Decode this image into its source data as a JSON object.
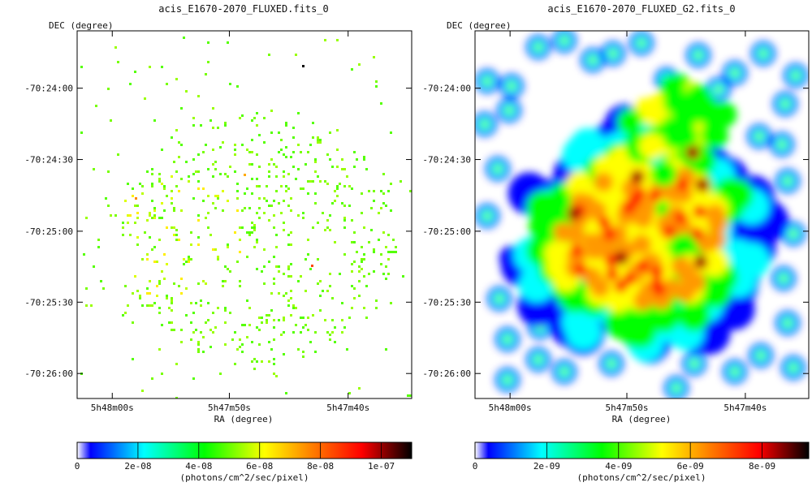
{
  "chart_data": [
    {
      "type": "heatmap",
      "title": "acis_E1670-2070_FLUXED.fits_0",
      "xlabel": "RA (degree)",
      "ylabel": "DEC (degree)",
      "x_ticks": [
        "5h48m00s",
        "5h47m50s",
        "5h47m40s"
      ],
      "y_ticks": [
        "-70:24:00",
        "-70:24:30",
        "-70:25:00",
        "-70:25:30",
        "-70:26:00"
      ],
      "colorbar": {
        "ticks": [
          "0",
          "2e-08",
          "4e-08",
          "6e-08",
          "8e-08",
          "1e-07"
        ],
        "tick_values": [
          0,
          2e-08,
          4e-08,
          6e-08,
          8e-08,
          1e-07
        ],
        "range": [
          0,
          1.1e-07
        ],
        "label": "(photons/cm^2/sec/pixel)"
      },
      "grid": false
    },
    {
      "type": "heatmap",
      "title": "acis_E1670-2070_FLUXED_G2.fits_0",
      "xlabel": "RA (degree)",
      "ylabel": "DEC (degree)",
      "x_ticks": [
        "5h48m00s",
        "5h47m50s",
        "5h47m40s"
      ],
      "y_ticks": [
        "-70:24:00",
        "-70:24:30",
        "-70:25:00",
        "-70:25:30",
        "-70:26:00"
      ],
      "colorbar": {
        "ticks": [
          "0",
          "2e-09",
          "4e-09",
          "6e-09",
          "8e-09"
        ],
        "tick_values": [
          0,
          2e-09,
          4e-09,
          6e-09,
          8e-09
        ],
        "range": [
          0,
          9.3e-09
        ],
        "label": "(photons/cm^2/sec/pixel)"
      },
      "grid": false
    }
  ],
  "colormap": [
    "#ffffff",
    "#0000ff",
    "#00ffff",
    "#00ff00",
    "#ffff00",
    "#ff8000",
    "#ff0000",
    "#000000"
  ]
}
